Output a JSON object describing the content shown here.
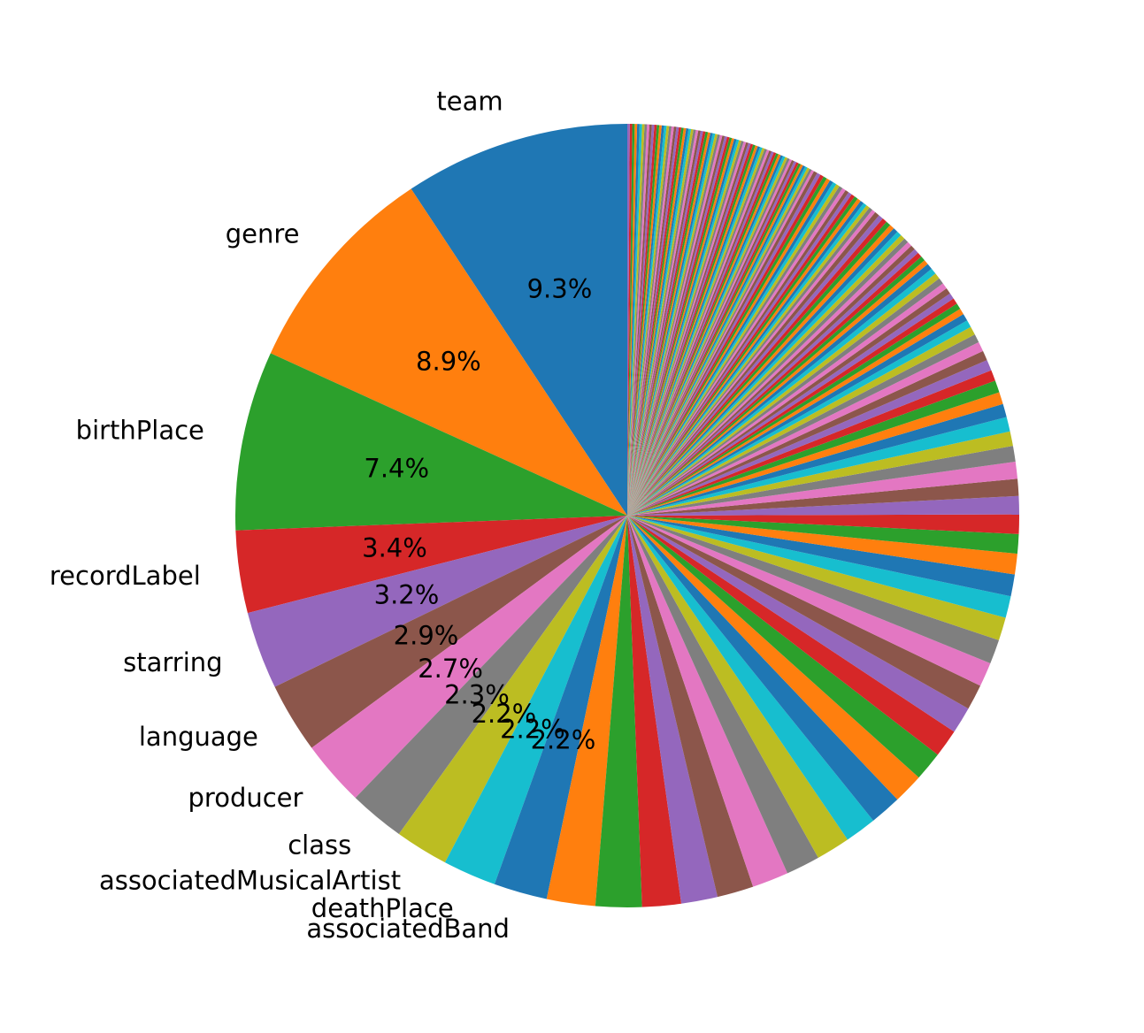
{
  "chart_data": {
    "type": "pie",
    "categories": [
      "team",
      "genre",
      "birthPlace",
      "recordLabel",
      "starring",
      "language",
      "producer",
      "class",
      "associatedMusicalArtist",
      "deathPlace",
      "associatedBand",
      null,
      null,
      null,
      null,
      null,
      null,
      null,
      null,
      null,
      null,
      null,
      null,
      null,
      null,
      null,
      null,
      null,
      null,
      null,
      null,
      null,
      null,
      null,
      null,
      null,
      null,
      null,
      null,
      null,
      null,
      null,
      null,
      null,
      null,
      null,
      null,
      null,
      null,
      null,
      null,
      null,
      null,
      null,
      null,
      null,
      null,
      null,
      null,
      null,
      null,
      null,
      null,
      null,
      null,
      null,
      null,
      null,
      null,
      null,
      null,
      null,
      null,
      null,
      null,
      null,
      null,
      null,
      null,
      null,
      null,
      null,
      null,
      null,
      null,
      null,
      null,
      null,
      null,
      null,
      null,
      null,
      null,
      null,
      null,
      null,
      null,
      null,
      null,
      null,
      null,
      null,
      null,
      null,
      null,
      null,
      null,
      null,
      null,
      null,
      null,
      null,
      null,
      null,
      null,
      null,
      null,
      null,
      null,
      null,
      null,
      null,
      null,
      null,
      null,
      null,
      null,
      null,
      null,
      null,
      null,
      null,
      null,
      null,
      null,
      null,
      null,
      null,
      null,
      null,
      null,
      null,
      null,
      null,
      null,
      null,
      null,
      null,
      null,
      null,
      null,
      null,
      null,
      null,
      null,
      null,
      null,
      null,
      null,
      null,
      null,
      null,
      null,
      null,
      null,
      null,
      null,
      null,
      null,
      null,
      null,
      null,
      null,
      null,
      null
    ],
    "values": [
      9.3,
      8.9,
      7.4,
      3.4,
      3.2,
      2.9,
      2.7,
      2.3,
      2.2,
      2.2,
      2.2,
      2.0,
      1.9,
      1.6,
      1.5,
      1.5,
      1.5,
      1.4,
      1.4,
      1.3,
      1.3,
      1.25,
      1.2,
      1.15,
      1.1,
      1.05,
      1.0,
      1.0,
      0.95,
      0.9,
      0.9,
      0.85,
      0.8,
      0.8,
      0.75,
      0.7,
      0.7,
      0.65,
      0.6,
      0.6,
      0.55,
      0.5,
      0.5,
      0.45,
      0.45,
      0.4,
      0.4,
      0.35,
      0.35,
      0.3,
      0.3,
      0.25,
      0.25,
      0.25,
      0.25,
      0.25,
      0.25,
      0.25,
      0.25,
      0.25,
      0.25,
      0.2,
      0.2,
      0.2,
      0.2,
      0.2,
      0.2,
      0.2,
      0.2,
      0.2,
      0.2,
      0.2,
      0.2,
      0.2,
      0.2,
      0.2,
      0.15,
      0.15,
      0.15,
      0.15,
      0.15,
      0.15,
      0.15,
      0.15,
      0.15,
      0.15,
      0.15,
      0.15,
      0.15,
      0.15,
      0.15,
      0.15,
      0.15,
      0.15,
      0.15,
      0.15,
      0.1,
      0.1,
      0.1,
      0.1,
      0.1,
      0.1,
      0.1,
      0.1,
      0.1,
      0.1,
      0.1,
      0.1,
      0.1,
      0.1,
      0.1,
      0.1,
      0.1,
      0.1,
      0.1,
      0.1,
      0.1,
      0.1,
      0.1,
      0.1,
      0.1,
      0.1,
      0.1,
      0.1,
      0.1,
      0.1,
      0.1,
      0.1,
      0.1,
      0.1,
      0.1,
      0.1,
      0.1,
      0.1,
      0.1,
      0.1,
      0.1,
      0.1,
      0.1,
      0.1,
      0.1,
      0.1,
      0.1,
      0.1,
      0.1,
      0.1,
      0.1,
      0.1,
      0.1,
      0.1,
      0.1,
      0.1,
      0.1,
      0.1,
      0.1,
      0.1,
      0.1,
      0.1,
      0.1,
      0.1,
      0.1,
      0.1,
      0.1,
      0.1,
      0.1,
      0.1,
      0.1,
      0.1,
      0.1,
      0.1,
      0.1,
      0.1,
      0.1,
      0.1,
      0.1
    ],
    "value_labels": [
      "9.3%",
      "8.9%",
      "7.4%",
      "3.4%",
      "3.2%",
      "2.9%",
      "2.7%",
      "2.3%",
      "2.2%",
      "2.2%",
      "2.2%",
      null,
      null,
      null,
      null,
      null,
      null,
      null,
      null,
      null,
      null,
      null,
      null,
      null,
      null,
      null,
      null,
      null,
      null,
      null,
      null,
      null,
      null,
      null,
      null,
      null,
      null,
      null,
      null,
      null,
      null,
      null,
      null,
      null,
      null,
      null,
      null,
      null,
      null,
      null,
      null,
      null,
      null,
      null,
      null,
      null,
      null,
      null,
      null,
      null,
      null,
      null,
      null,
      null,
      null,
      null,
      null,
      null,
      null,
      null,
      null,
      null,
      null,
      null,
      null,
      null,
      null,
      null,
      null,
      null,
      null,
      null,
      null,
      null,
      null,
      null,
      null,
      null,
      null,
      null,
      null,
      null,
      null,
      null,
      null,
      null,
      null,
      null,
      null,
      null,
      null,
      null,
      null,
      null,
      null,
      null,
      null,
      null,
      null,
      null,
      null,
      null,
      null,
      null,
      null,
      null,
      null,
      null,
      null,
      null,
      null,
      null,
      null,
      null,
      null,
      null,
      null,
      null,
      null,
      null,
      null,
      null,
      null,
      null,
      null,
      null,
      null,
      null,
      null,
      null,
      null,
      null,
      null,
      null,
      null,
      null,
      null,
      null,
      null,
      null,
      null,
      null,
      null,
      null,
      null,
      null,
      null,
      null,
      null,
      null,
      null,
      null,
      null,
      null,
      null,
      null,
      null,
      null,
      null,
      null,
      null,
      null,
      null,
      null,
      null
    ],
    "colors": [
      "#1f77b4",
      "#ff7f0e",
      "#2ca02c",
      "#d62728",
      "#9467bd",
      "#8c564b",
      "#e377c2",
      "#7f7f7f",
      "#bcbd22",
      "#17becf"
    ],
    "startangle": 90
  }
}
